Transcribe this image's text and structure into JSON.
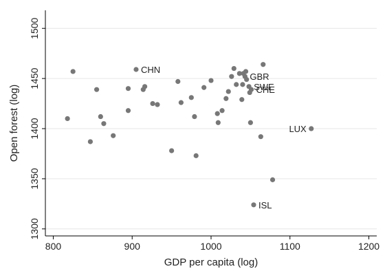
{
  "chart_data": {
    "type": "scatter",
    "xlabel": "GDP per capita (log)",
    "ylabel": "Open forest (log)",
    "xlim": [
      790,
      1210
    ],
    "ylim": [
      1293,
      1518
    ],
    "xticks": [
      800,
      900,
      1000,
      1100,
      1200
    ],
    "yticks": [
      1300,
      1350,
      1400,
      1450,
      1500
    ],
    "grid": "horizontal",
    "point_color": "#777777",
    "points": [
      {
        "x": 818,
        "y": 1410,
        "label": ""
      },
      {
        "x": 825,
        "y": 1457,
        "label": ""
      },
      {
        "x": 847,
        "y": 1387,
        "label": ""
      },
      {
        "x": 855,
        "y": 1439,
        "label": ""
      },
      {
        "x": 860,
        "y": 1412,
        "label": ""
      },
      {
        "x": 864,
        "y": 1405,
        "label": ""
      },
      {
        "x": 876,
        "y": 1393,
        "label": ""
      },
      {
        "x": 895,
        "y": 1418,
        "label": ""
      },
      {
        "x": 895,
        "y": 1440,
        "label": ""
      },
      {
        "x": 905,
        "y": 1459,
        "label": "CHN"
      },
      {
        "x": 914,
        "y": 1439,
        "label": ""
      },
      {
        "x": 916,
        "y": 1442,
        "label": ""
      },
      {
        "x": 926,
        "y": 1425,
        "label": ""
      },
      {
        "x": 932,
        "y": 1424,
        "label": ""
      },
      {
        "x": 950,
        "y": 1378,
        "label": ""
      },
      {
        "x": 958,
        "y": 1447,
        "label": ""
      },
      {
        "x": 962,
        "y": 1426,
        "label": ""
      },
      {
        "x": 975,
        "y": 1431,
        "label": ""
      },
      {
        "x": 979,
        "y": 1412,
        "label": ""
      },
      {
        "x": 981,
        "y": 1373,
        "label": ""
      },
      {
        "x": 991,
        "y": 1441,
        "label": ""
      },
      {
        "x": 1000,
        "y": 1448,
        "label": ""
      },
      {
        "x": 1008,
        "y": 1415,
        "label": ""
      },
      {
        "x": 1009,
        "y": 1406,
        "label": ""
      },
      {
        "x": 1014,
        "y": 1418,
        "label": ""
      },
      {
        "x": 1019,
        "y": 1430,
        "label": ""
      },
      {
        "x": 1022,
        "y": 1437,
        "label": ""
      },
      {
        "x": 1026,
        "y": 1452,
        "label": ""
      },
      {
        "x": 1029,
        "y": 1460,
        "label": ""
      },
      {
        "x": 1032,
        "y": 1444,
        "label": ""
      },
      {
        "x": 1036,
        "y": 1455,
        "label": ""
      },
      {
        "x": 1039,
        "y": 1429,
        "label": ""
      },
      {
        "x": 1040,
        "y": 1444,
        "label": ""
      },
      {
        "x": 1041,
        "y": 1455,
        "label": ""
      },
      {
        "x": 1043,
        "y": 1452,
        "label": "GBR"
      },
      {
        "x": 1044,
        "y": 1457,
        "label": ""
      },
      {
        "x": 1045,
        "y": 1449,
        "label": ""
      },
      {
        "x": 1048,
        "y": 1442,
        "label": "SWE"
      },
      {
        "x": 1049,
        "y": 1436,
        "label": ""
      },
      {
        "x": 1051,
        "y": 1439,
        "label": "CHE"
      },
      {
        "x": 1050,
        "y": 1406,
        "label": ""
      },
      {
        "x": 1054,
        "y": 1324,
        "label": "ISL"
      },
      {
        "x": 1063,
        "y": 1392,
        "label": ""
      },
      {
        "x": 1066,
        "y": 1464,
        "label": ""
      },
      {
        "x": 1078,
        "y": 1349,
        "label": ""
      },
      {
        "x": 1127,
        "y": 1400,
        "label": "LUX"
      }
    ]
  }
}
